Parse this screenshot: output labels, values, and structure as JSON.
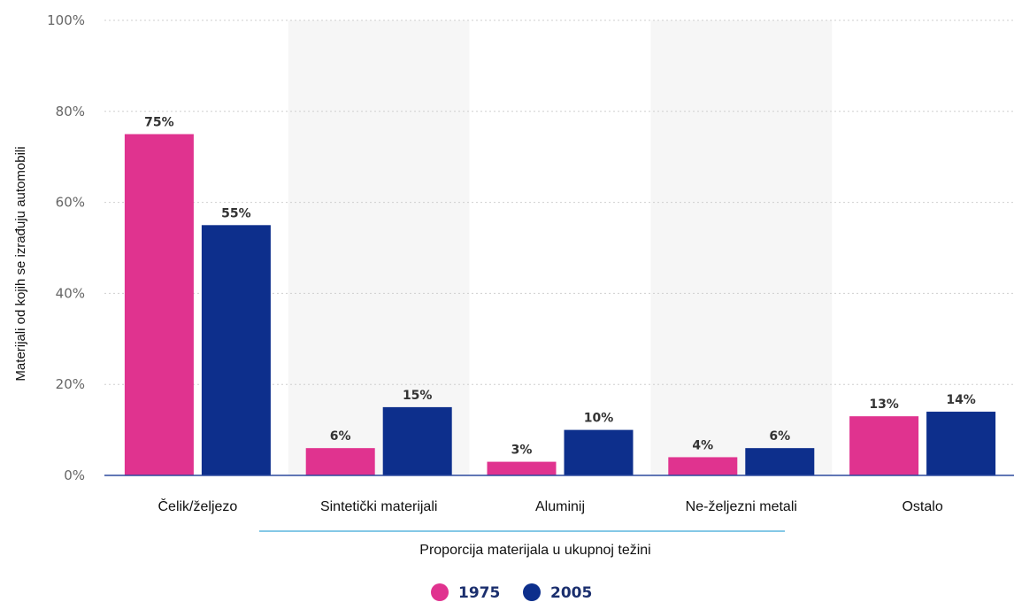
{
  "chart_data": {
    "type": "bar",
    "categories": [
      "Čelik/željezo",
      "Sintetički materijali",
      "Aluminij",
      "Ne-željezni metali",
      "Ostalo"
    ],
    "series": [
      {
        "name": "1975",
        "values": [
          75,
          6,
          3,
          4,
          13
        ],
        "labels": [
          "75%",
          "6%",
          "3%",
          "4%",
          "13%"
        ]
      },
      {
        "name": "2005",
        "values": [
          55,
          15,
          10,
          6,
          14
        ],
        "labels": [
          "55%",
          "15%",
          "10%",
          "6%",
          "14%"
        ]
      }
    ],
    "xlabel": "Proporcija materijala u ukupnoj težini",
    "ylabel": "Materijali od kojih se izrađuju automobili",
    "ylim": [
      0,
      100
    ],
    "yticks": [
      "0%",
      "20%",
      "40%",
      "60%",
      "80%",
      "100%"
    ],
    "grid": true,
    "legend": "bottom-center",
    "colors": {
      "1975": "#e0338f",
      "2005": "#0d2f8c",
      "band": "#f6f6f6",
      "axis": "#2d4a9e",
      "accent_line": "#3aa6d8"
    }
  }
}
